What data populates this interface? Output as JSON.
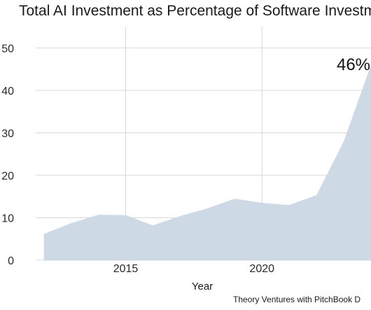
{
  "chart_data": {
    "type": "area",
    "title": "Total AI Investment as Percentage of Software Investme",
    "xlabel": "Year",
    "ylabel": "",
    "x": [
      2012,
      2013,
      2014,
      2015,
      2016,
      2017,
      2018,
      2019,
      2020,
      2021,
      2022,
      2023,
      2024
    ],
    "values": [
      6.2,
      8.7,
      10.7,
      10.6,
      8.2,
      10.4,
      12.2,
      14.5,
      13.5,
      13.0,
      15.3,
      28.0,
      46.0
    ],
    "xlim": [
      2011.7,
      2024.0
    ],
    "ylim": [
      0,
      55
    ],
    "x_ticks": [
      2015,
      2020
    ],
    "x_tick_labels": [
      "2015",
      "2020"
    ],
    "y_ticks": [
      0,
      10,
      20,
      30,
      40,
      50
    ],
    "y_tick_labels": [
      "0",
      "10",
      "20",
      "30",
      "40",
      "50"
    ],
    "grid": true,
    "annotation": "46%",
    "source": "Theory Ventures with PitchBook D",
    "fill_color": "#cdd9e5",
    "grid_color": "#d9d9d9"
  }
}
